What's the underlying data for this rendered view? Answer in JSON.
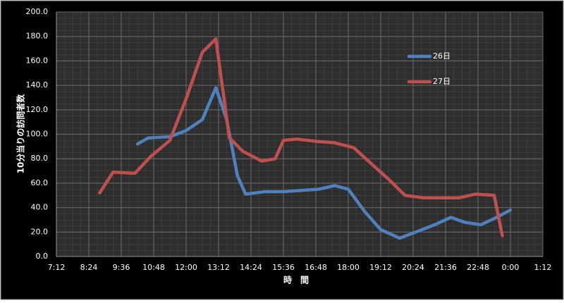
{
  "chart_data": {
    "type": "line",
    "y_label": "10分当りの訪問者数",
    "x_label": "時　間",
    "xlim": [
      7.2,
      25.2
    ],
    "xticks": [
      {
        "value": 7.2,
        "label": "7:12"
      },
      {
        "value": 8.4,
        "label": "8:24"
      },
      {
        "value": 9.6,
        "label": "9:36"
      },
      {
        "value": 10.8,
        "label": "10:48"
      },
      {
        "value": 12,
        "label": "12:00"
      },
      {
        "value": 13.2,
        "label": "13:12"
      },
      {
        "value": 14.4,
        "label": "14:24"
      },
      {
        "value": 15.6,
        "label": "15:36"
      },
      {
        "value": 16.8,
        "label": "16:48"
      },
      {
        "value": 18,
        "label": "18:00"
      },
      {
        "value": 19.2,
        "label": "19:12"
      },
      {
        "value": 20.4,
        "label": "20:24"
      },
      {
        "value": 21.6,
        "label": "21:36"
      },
      {
        "value": 22.8,
        "label": "22:48"
      },
      {
        "value": 24,
        "label": "0:00"
      },
      {
        "value": 25.2,
        "label": "1:12"
      }
    ],
    "ylim": [
      0,
      200
    ],
    "yticks": [
      {
        "value": 0,
        "label": "0.0"
      },
      {
        "value": 20,
        "label": "20.0"
      },
      {
        "value": 40,
        "label": "40.0"
      },
      {
        "value": 60,
        "label": "60.0"
      },
      {
        "value": 80,
        "label": "80.0"
      },
      {
        "value": 100,
        "label": "100.0"
      },
      {
        "value": 120,
        "label": "120.0"
      },
      {
        "value": 140,
        "label": "140.0"
      },
      {
        "value": 160,
        "label": "160.0"
      },
      {
        "value": 180,
        "label": "180.0"
      },
      {
        "value": 200,
        "label": "200.0"
      }
    ],
    "grid": true,
    "legend": "upper right",
    "series": [
      {
        "name": "26日",
        "color": "#4f81bd",
        "x": [
          10.2,
          10.6,
          11.4,
          12.0,
          12.6,
          13.1,
          13.5,
          13.9,
          14.2,
          14.9,
          15.6,
          16.2,
          16.9,
          17.5,
          18.0,
          18.6,
          19.2,
          19.9,
          20.5,
          21.2,
          21.8,
          22.3,
          22.9,
          23.4,
          24.0
        ],
        "values": [
          92,
          97,
          98,
          103,
          112,
          138,
          112,
          66,
          51,
          53,
          53,
          54,
          55,
          58,
          55,
          37,
          22,
          15,
          20,
          26,
          32,
          28,
          26,
          31,
          38
        ]
      },
      {
        "name": "27日",
        "color": "#c0504d",
        "x": [
          8.8,
          9.3,
          10.1,
          10.7,
          11.4,
          12.0,
          12.6,
          13.1,
          13.6,
          14.1,
          14.8,
          15.3,
          15.6,
          16.1,
          16.9,
          17.5,
          18.2,
          18.8,
          19.5,
          20.1,
          20.8,
          21.4,
          22.1,
          22.7,
          23.4,
          23.7
        ],
        "values": [
          52,
          69,
          68,
          82,
          95,
          129,
          167,
          178,
          97,
          86,
          78,
          80,
          95,
          96,
          94,
          93,
          89,
          77,
          63,
          50,
          48,
          48,
          48,
          51,
          50,
          17
        ]
      }
    ]
  }
}
